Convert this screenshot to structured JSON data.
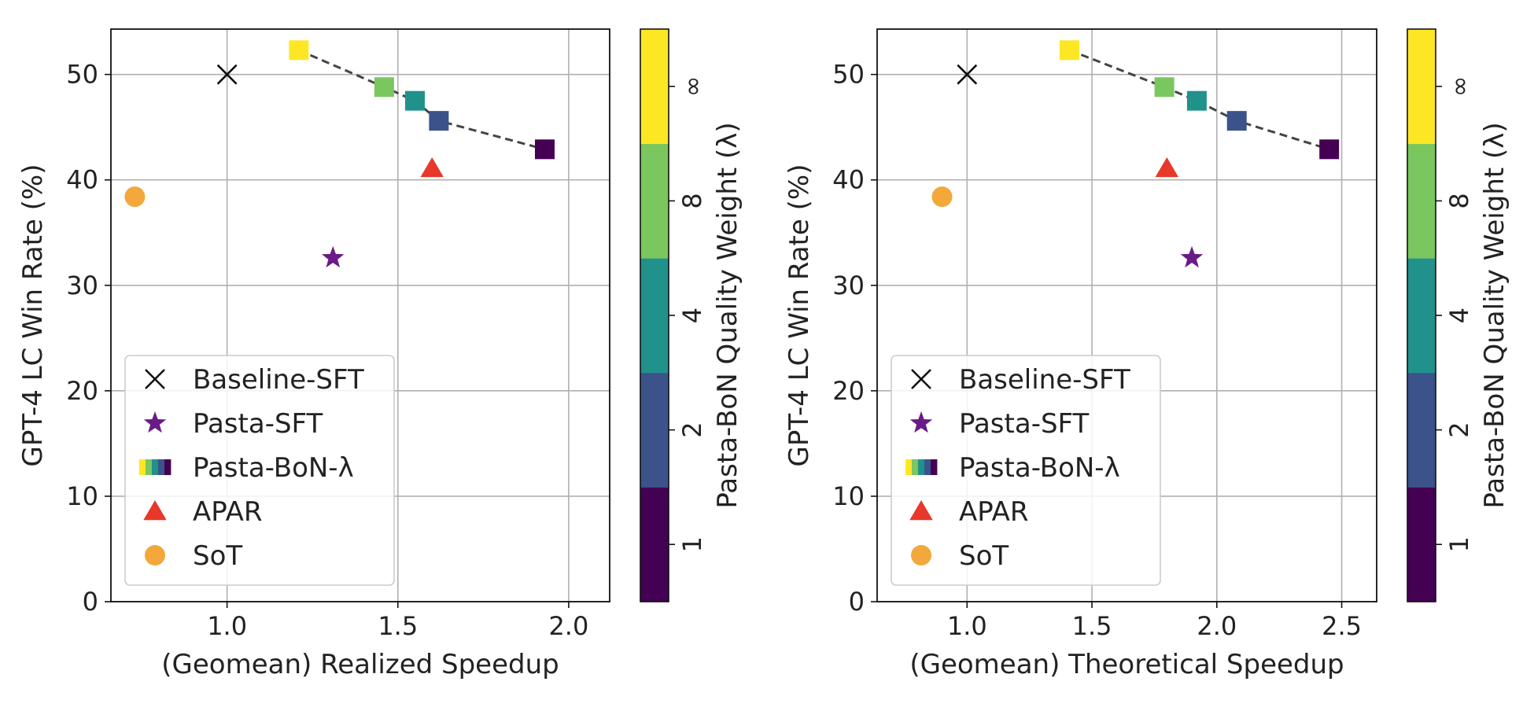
{
  "colors": {
    "pasta_sft": "#6a1b87",
    "apar": "#e8382a",
    "sot": "#f2a83b",
    "baseline": "#111111",
    "grid": "#b0b0b0",
    "fit_line": "#444444"
  },
  "colorbar": {
    "label": "Pasta-BoN Quality Weight (λ)",
    "levels": [
      {
        "label": "1",
        "color": "#440154"
      },
      {
        "label": "2",
        "color": "#3b528b"
      },
      {
        "label": "4",
        "color": "#21918c"
      },
      {
        "label": "8",
        "color": "#7ac65f"
      },
      {
        "label": "∞",
        "color": "#fde725"
      }
    ]
  },
  "legend": {
    "items": [
      {
        "label": "Baseline-SFT",
        "marker": "x"
      },
      {
        "label": "Pasta-SFT",
        "marker": "star"
      },
      {
        "label": "Pasta-BoN-λ",
        "marker": "gradient"
      },
      {
        "label": "APAR",
        "marker": "triangle"
      },
      {
        "label": "SoT",
        "marker": "circle"
      }
    ],
    "placement": "lower-left"
  },
  "chart_data": [
    {
      "type": "scatter",
      "xlabel": "(Geomean) Realized Speedup",
      "ylabel": "GPT-4 LC Win Rate (%)",
      "xlim": [
        0.66,
        2.12
      ],
      "ylim": [
        0,
        54.3
      ],
      "xticks": [
        1.0,
        1.5,
        2.0
      ],
      "xtick_labels": [
        "1.0",
        "1.5",
        "2.0"
      ],
      "yticks": [
        0,
        10,
        20,
        30,
        40,
        50
      ],
      "ytick_labels": [
        "0",
        "10",
        "20",
        "30",
        "40",
        "50"
      ],
      "grid": true,
      "series": [
        {
          "name": "Baseline-SFT",
          "marker": "x",
          "points": [
            {
              "x": 1.0,
              "y": 50.0
            }
          ]
        },
        {
          "name": "Pasta-SFT",
          "marker": "star",
          "points": [
            {
              "x": 1.31,
              "y": 32.6
            }
          ]
        },
        {
          "name": "Pasta-BoN-λ",
          "marker": "square",
          "dashed_line": true,
          "points": [
            {
              "x": 1.21,
              "y": 52.3,
              "lambda": "∞"
            },
            {
              "x": 1.46,
              "y": 48.8,
              "lambda": "8"
            },
            {
              "x": 1.55,
              "y": 47.5,
              "lambda": "4"
            },
            {
              "x": 1.62,
              "y": 45.6,
              "lambda": "2"
            },
            {
              "x": 1.93,
              "y": 42.9,
              "lambda": "1"
            }
          ]
        },
        {
          "name": "APAR",
          "marker": "triangle",
          "points": [
            {
              "x": 1.6,
              "y": 41.1
            }
          ]
        },
        {
          "name": "SoT",
          "marker": "circle",
          "points": [
            {
              "x": 0.73,
              "y": 38.4
            }
          ]
        }
      ]
    },
    {
      "type": "scatter",
      "xlabel": "(Geomean) Theoretical Speedup",
      "ylabel": "GPT-4 LC Win Rate (%)",
      "xlim": [
        0.64,
        2.64
      ],
      "ylim": [
        0,
        54.3
      ],
      "xticks": [
        1.0,
        1.5,
        2.0,
        2.5
      ],
      "xtick_labels": [
        "1.0",
        "1.5",
        "2.0",
        "2.5"
      ],
      "yticks": [
        0,
        10,
        20,
        30,
        40,
        50
      ],
      "ytick_labels": [
        "0",
        "10",
        "20",
        "30",
        "40",
        "50"
      ],
      "grid": true,
      "series": [
        {
          "name": "Baseline-SFT",
          "marker": "x",
          "points": [
            {
              "x": 1.0,
              "y": 50.0
            }
          ]
        },
        {
          "name": "Pasta-SFT",
          "marker": "star",
          "points": [
            {
              "x": 1.9,
              "y": 32.6
            }
          ]
        },
        {
          "name": "Pasta-BoN-λ",
          "marker": "square",
          "dashed_line": true,
          "points": [
            {
              "x": 1.41,
              "y": 52.3,
              "lambda": "∞"
            },
            {
              "x": 1.79,
              "y": 48.8,
              "lambda": "8"
            },
            {
              "x": 1.92,
              "y": 47.5,
              "lambda": "4"
            },
            {
              "x": 2.08,
              "y": 45.6,
              "lambda": "2"
            },
            {
              "x": 2.45,
              "y": 42.9,
              "lambda": "1"
            }
          ]
        },
        {
          "name": "APAR",
          "marker": "triangle",
          "points": [
            {
              "x": 1.8,
              "y": 41.1
            }
          ]
        },
        {
          "name": "SoT",
          "marker": "circle",
          "points": [
            {
              "x": 0.9,
              "y": 38.4
            }
          ]
        }
      ]
    }
  ]
}
